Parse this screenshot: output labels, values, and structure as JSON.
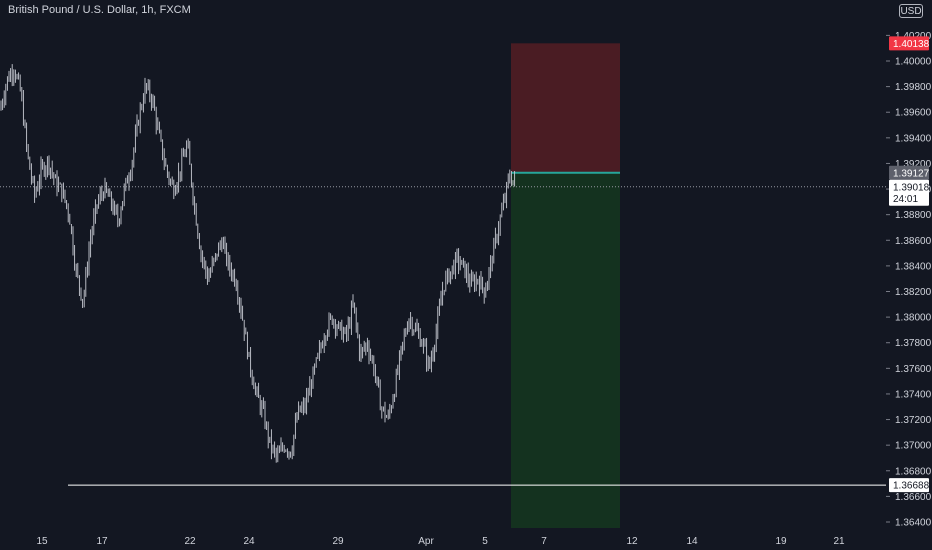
{
  "header": {
    "title": "British Pound / U.S. Dollar, 1h, FXCM",
    "currency": "USD"
  },
  "colors": {
    "background": "#131722",
    "candle": "#c9ccd4",
    "axis_text": "#d1d4dc",
    "stop_zone": "#4a1c23",
    "target_zone": "#14321f",
    "entry_line": "#26a69a",
    "stop_badge": "#f23645",
    "price_badge": "#5d606b",
    "support_line": "#ffffff"
  },
  "chart_data": {
    "type": "candlestick",
    "instrument": "British Pound / U.S. Dollar",
    "timeframe": "1h",
    "source": "FXCM",
    "x_ticks": [
      "15",
      "17",
      "22",
      "24",
      "29",
      "Apr",
      "5",
      "7",
      "12",
      "14",
      "19",
      "21"
    ],
    "y_ticks": [
      "1.40200",
      "1.40000",
      "1.39800",
      "1.39600",
      "1.39400",
      "1.39200",
      "1.39000",
      "1.38800",
      "1.38600",
      "1.38400",
      "1.38200",
      "1.38000",
      "1.37800",
      "1.37600",
      "1.37400",
      "1.37200",
      "1.37000",
      "1.36800",
      "1.36600",
      "1.36400"
    ],
    "ylim": [
      1.3638,
      1.4026
    ],
    "price_path": [
      [
        0,
        1.3962
      ],
      [
        2,
        1.3985
      ],
      [
        4,
        1.3995
      ],
      [
        6,
        1.3975
      ],
      [
        8,
        1.3925
      ],
      [
        10,
        1.3895
      ],
      [
        12,
        1.3915
      ],
      [
        14,
        1.3922
      ],
      [
        16,
        1.3905
      ],
      [
        18,
        1.3898
      ],
      [
        20,
        1.388
      ],
      [
        22,
        1.3835
      ],
      [
        24,
        1.3812
      ],
      [
        26,
        1.386
      ],
      [
        28,
        1.3888
      ],
      [
        30,
        1.39
      ],
      [
        32,
        1.389
      ],
      [
        34,
        1.3875
      ],
      [
        36,
        1.39
      ],
      [
        38,
        1.392
      ],
      [
        40,
        1.3955
      ],
      [
        42,
        1.398
      ],
      [
        44,
        1.397
      ],
      [
        46,
        1.394
      ],
      [
        48,
        1.3915
      ],
      [
        50,
        1.39
      ],
      [
        52,
        1.3915
      ],
      [
        54,
        1.3935
      ],
      [
        56,
        1.389
      ],
      [
        58,
        1.385
      ],
      [
        60,
        1.383
      ],
      [
        62,
        1.3845
      ],
      [
        64,
        1.386
      ],
      [
        66,
        1.384
      ],
      [
        68,
        1.383
      ],
      [
        70,
        1.38
      ],
      [
        72,
        1.3765
      ],
      [
        74,
        1.374
      ],
      [
        76,
        1.3725
      ],
      [
        78,
        1.37
      ],
      [
        80,
        1.369
      ],
      [
        82,
        1.37
      ],
      [
        84,
        1.3695
      ],
      [
        86,
        1.3725
      ],
      [
        88,
        1.373
      ],
      [
        90,
        1.375
      ],
      [
        92,
        1.377
      ],
      [
        94,
        1.379
      ],
      [
        96,
        1.38
      ],
      [
        98,
        1.379
      ],
      [
        100,
        1.3785
      ],
      [
        102,
        1.381
      ],
      [
        104,
        1.377
      ],
      [
        106,
        1.378
      ],
      [
        108,
        1.376
      ],
      [
        110,
        1.373
      ],
      [
        112,
        1.372
      ],
      [
        114,
        1.3745
      ],
      [
        116,
        1.3775
      ],
      [
        118,
        1.38
      ],
      [
        120,
        1.379
      ],
      [
        122,
        1.378
      ],
      [
        124,
        1.376
      ],
      [
        126,
        1.379
      ],
      [
        128,
        1.3825
      ],
      [
        130,
        1.3835
      ],
      [
        132,
        1.3845
      ],
      [
        134,
        1.3838
      ],
      [
        136,
        1.3825
      ],
      [
        138,
        1.383
      ],
      [
        140,
        1.382
      ],
      [
        142,
        1.3845
      ],
      [
        144,
        1.3872
      ],
      [
        146,
        1.3895
      ],
      [
        147,
        1.391
      ],
      [
        149,
        1.3905
      ]
    ],
    "current_price": 1.39018,
    "current_price_label": "1.39018",
    "countdown": "24:01",
    "position": {
      "type": "short",
      "entry": 1.39127,
      "entry_label": "1.39127",
      "stop": 1.40138,
      "stop_label": "1.40138",
      "support": 1.36688,
      "support_label": "1.36688"
    }
  }
}
